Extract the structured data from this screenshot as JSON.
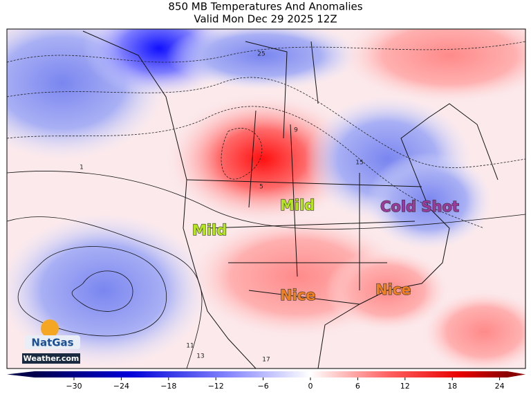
{
  "header": {
    "title": "850 MB Temperatures And Anomalies",
    "subtitle": "Valid Mon Dec 29 2025 12Z"
  },
  "annotations": [
    {
      "text": "Mild",
      "color": "#b5e61d"
    },
    {
      "text": "Mild",
      "color": "#b5e61d"
    },
    {
      "text": "Cold Shot",
      "color": "#9b3a9b"
    },
    {
      "text": "Nice",
      "color": "#f07f1d"
    },
    {
      "text": "Nice",
      "color": "#f07f1d"
    }
  ],
  "contour_labels": [
    "25",
    "1",
    "9",
    "15",
    "5",
    "11",
    "13",
    "17"
  ],
  "logo": {
    "name": "NatGas",
    "site": "Weather.com"
  },
  "colorbar": {
    "lim": [
      -35,
      25
    ],
    "ticks": [
      {
        "value": -30,
        "label": "−30"
      },
      {
        "value": -24,
        "label": "−24"
      },
      {
        "value": -18,
        "label": "−18"
      },
      {
        "value": -12,
        "label": "−12"
      },
      {
        "value": -6,
        "label": "−6"
      },
      0,
      6,
      12,
      18,
      24
    ]
  }
}
